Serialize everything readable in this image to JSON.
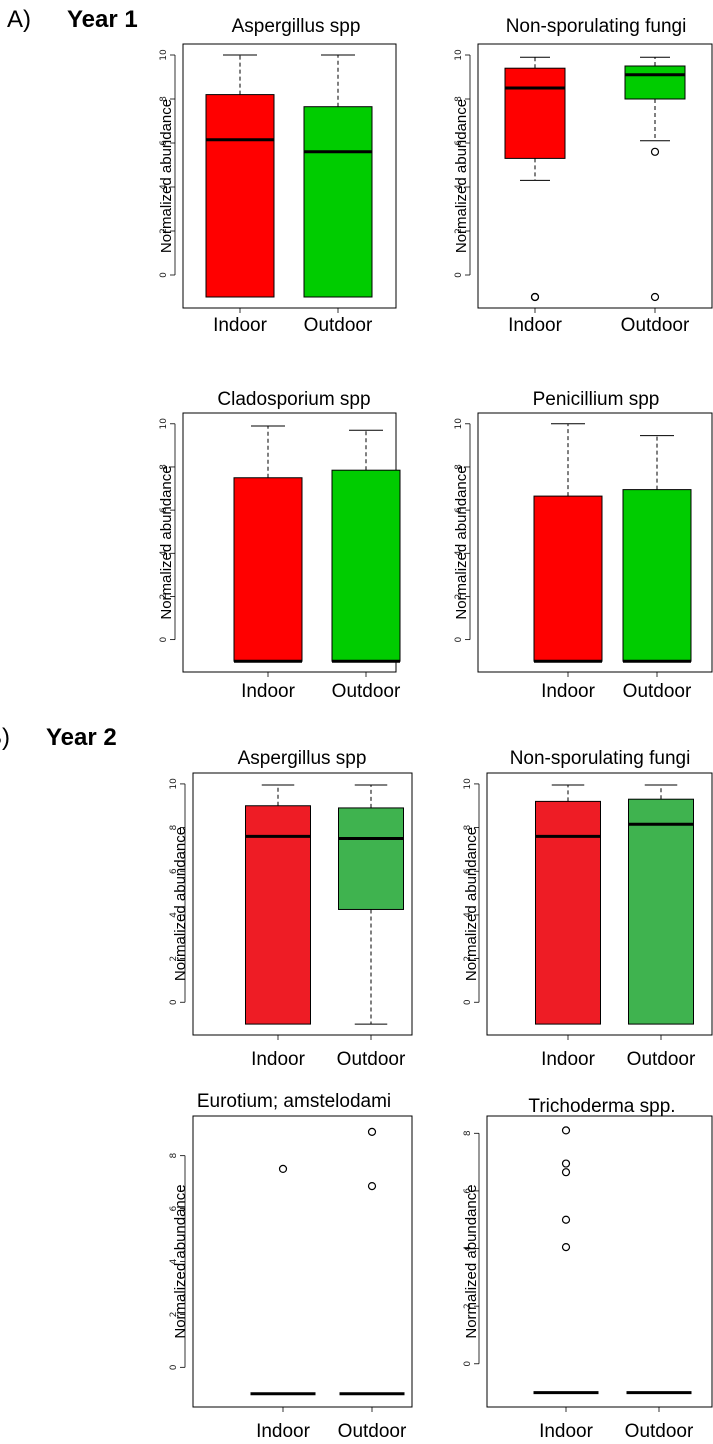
{
  "sections": [
    {
      "letter": "A)",
      "title": "Year 1"
    },
    {
      "letter": "B)",
      "title": "Year 2"
    }
  ],
  "colors": {
    "year1_indoor": "#ff0000",
    "year1_outdoor": "#00cc00",
    "year2_indoor": "#ee1c25",
    "year2_outdoor": "#3fb34f"
  },
  "chart_data": [
    {
      "type": "box",
      "section": "Year 1",
      "title": "Aspergillus spp",
      "ylabel": "Normalized abundance",
      "yticks": [
        0,
        2,
        4,
        6,
        8,
        10
      ],
      "ylim": [
        -1.5,
        10.5
      ],
      "categories": [
        "Indoor",
        "Outdoor"
      ],
      "boxes": [
        {
          "name": "Indoor",
          "color": "#ff0000",
          "min": -1,
          "q1": -1,
          "median": 6.15,
          "q3": 8.2,
          "max": 10,
          "outliers": []
        },
        {
          "name": "Outdoor",
          "color": "#00cc00",
          "min": -1,
          "q1": -1,
          "median": 5.6,
          "q3": 7.65,
          "max": 10,
          "outliers": []
        }
      ]
    },
    {
      "type": "box",
      "section": "Year 1",
      "title": "Non-sporulating fungi",
      "ylabel": "Normalized abundance",
      "yticks": [
        0,
        2,
        4,
        6,
        8,
        10
      ],
      "ylim": [
        -1.5,
        10.5
      ],
      "categories": [
        "Indoor",
        "Outdoor"
      ],
      "boxes": [
        {
          "name": "Indoor",
          "color": "#ff0000",
          "min": 4.3,
          "q1": 5.3,
          "median": 8.5,
          "q3": 9.4,
          "max": 9.9,
          "outliers": [
            -1,
            -1
          ]
        },
        {
          "name": "Outdoor",
          "color": "#00cc00",
          "min": 6.1,
          "q1": 8.0,
          "median": 9.1,
          "q3": 9.5,
          "max": 9.9,
          "outliers": [
            5.6,
            -1
          ]
        }
      ]
    },
    {
      "type": "box",
      "section": "Year 1",
      "title": "Cladosporium spp",
      "ylabel": "Normalized abundance",
      "yticks": [
        0,
        2,
        4,
        6,
        8,
        10
      ],
      "ylim": [
        -1.5,
        10.5
      ],
      "categories": [
        "Indoor",
        "Outdoor"
      ],
      "boxes": [
        {
          "name": "Indoor",
          "color": "#ff0000",
          "min": -1,
          "q1": -1,
          "median": -1,
          "q3": 7.5,
          "max": 9.9,
          "outliers": []
        },
        {
          "name": "Outdoor",
          "color": "#00cc00",
          "min": -1,
          "q1": -1,
          "median": -1,
          "q3": 7.85,
          "max": 9.7,
          "outliers": []
        }
      ]
    },
    {
      "type": "box",
      "section": "Year 1",
      "title": "Penicillium spp",
      "ylabel": "Normalized abundance",
      "yticks": [
        0,
        2,
        4,
        6,
        8,
        10
      ],
      "ylim": [
        -1.5,
        10.5
      ],
      "categories": [
        "Indoor",
        "Outdoor"
      ],
      "boxes": [
        {
          "name": "Indoor",
          "color": "#ff0000",
          "min": -1,
          "q1": -1,
          "median": -1,
          "q3": 6.65,
          "max": 10,
          "outliers": []
        },
        {
          "name": "Outdoor",
          "color": "#00cc00",
          "min": -1,
          "q1": -1,
          "median": -1,
          "q3": 6.95,
          "max": 9.45,
          "outliers": []
        }
      ]
    },
    {
      "type": "box",
      "section": "Year 2",
      "title": "Aspergillus spp",
      "ylabel": "Normalized abundance",
      "yticks": [
        0,
        2,
        4,
        6,
        8,
        10
      ],
      "ylim": [
        -1.5,
        10.5
      ],
      "categories": [
        "Indoor",
        "Outdoor"
      ],
      "boxes": [
        {
          "name": "Indoor",
          "color": "#ee1c25",
          "min": -1,
          "q1": -1,
          "median": 7.6,
          "q3": 9.0,
          "max": 9.95,
          "outliers": []
        },
        {
          "name": "Outdoor",
          "color": "#3fb34f",
          "min": -1,
          "q1": 4.25,
          "median": 7.5,
          "q3": 8.9,
          "max": 9.95,
          "outliers": []
        }
      ]
    },
    {
      "type": "box",
      "section": "Year 2",
      "title": "Non-sporulating fungi",
      "ylabel": "Normalized abundance",
      "yticks": [
        0,
        2,
        4,
        6,
        8,
        10
      ],
      "ylim": [
        -1.5,
        10.5
      ],
      "categories": [
        "Indoor",
        "Outdoor"
      ],
      "boxes": [
        {
          "name": "Indoor",
          "color": "#ee1c25",
          "min": -1,
          "q1": -1,
          "median": 7.6,
          "q3": 9.2,
          "max": 9.95,
          "outliers": []
        },
        {
          "name": "Outdoor",
          "color": "#3fb34f",
          "min": -1,
          "q1": -1,
          "median": 8.15,
          "q3": 9.3,
          "max": 9.95,
          "outliers": []
        }
      ]
    },
    {
      "type": "box",
      "section": "Year 2",
      "title": "Eurotium; amstelodami",
      "ylabel": "Normalized abundance",
      "yticks": [
        0,
        2,
        4,
        6,
        8
      ],
      "ylim": [
        -1.5,
        9.5
      ],
      "categories": [
        "Indoor",
        "Outdoor"
      ],
      "boxes": [
        {
          "name": "Indoor",
          "color": "#ffffff",
          "min": -1,
          "q1": -1,
          "median": -1,
          "q3": -1,
          "max": -1,
          "outliers": [
            7.5
          ]
        },
        {
          "name": "Outdoor",
          "color": "#ffffff",
          "min": -1,
          "q1": -1,
          "median": -1,
          "q3": -1,
          "max": -1,
          "outliers": [
            8.9,
            6.85
          ]
        }
      ]
    },
    {
      "type": "box",
      "section": "Year 2",
      "title": "Trichoderma spp.",
      "ylabel": "Normalized abundance",
      "yticks": [
        0,
        2,
        4,
        6,
        8
      ],
      "ylim": [
        -1.5,
        8.6
      ],
      "categories": [
        "Indoor",
        "Outdoor"
      ],
      "boxes": [
        {
          "name": "Indoor",
          "color": "#ffffff",
          "min": -1,
          "q1": -1,
          "median": -1,
          "q3": -1,
          "max": -1,
          "outliers": [
            8.1,
            6.95,
            6.65,
            5.0,
            4.05
          ]
        },
        {
          "name": "Outdoor",
          "color": "#ffffff",
          "min": -1,
          "q1": -1,
          "median": -1,
          "q3": -1,
          "max": -1,
          "outliers": []
        }
      ]
    }
  ]
}
